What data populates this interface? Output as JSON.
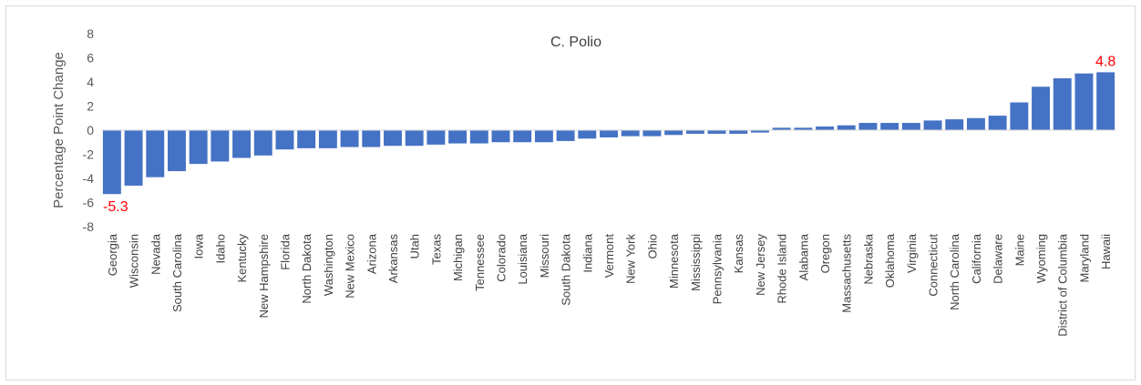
{
  "chart_data": {
    "type": "bar",
    "title": "C. Polio",
    "ylabel": "Percentage Point Change",
    "xlabel": "",
    "ylim": [
      -8,
      8
    ],
    "yticks": [
      -8,
      -6,
      -4,
      -2,
      0,
      2,
      4,
      6,
      8
    ],
    "grid": false,
    "legend": "none",
    "bar_color": "#4472C4",
    "label_color": "#FF0000",
    "categories": [
      "Georgia",
      "Wisconsin",
      "Nevada",
      "South Carolina",
      "Iowa",
      "Idaho",
      "Kentucky",
      "New Hampshire",
      "Florida",
      "North Dakota",
      "Washington",
      "New Mexico",
      "Arizona",
      "Arkansas",
      "Utah",
      "Texas",
      "Michigan",
      "Tennessee",
      "Colorado",
      "Louisiana",
      "Missouri",
      "South Dakota",
      "Indiana",
      "Vermont",
      "New York",
      "Ohio",
      "Minnesota",
      "Mississippi",
      "Pennsylvania",
      "Kansas",
      "New Jersey",
      "Rhode Island",
      "Alabama",
      "Oregon",
      "Massachusetts",
      "Nebraska",
      "Oklahoma",
      "Virginia",
      "Connecticut",
      "North Carolina",
      "California",
      "Delaware",
      "Maine",
      "Wyoming",
      "District of Columbia",
      "Maryland",
      "Hawaii"
    ],
    "values": [
      -5.3,
      -4.6,
      -3.9,
      -3.4,
      -2.8,
      -2.6,
      -2.3,
      -2.1,
      -1.6,
      -1.5,
      -1.5,
      -1.4,
      -1.4,
      -1.3,
      -1.3,
      -1.2,
      -1.1,
      -1.1,
      -1.0,
      -1.0,
      -1.0,
      -0.9,
      -0.7,
      -0.6,
      -0.5,
      -0.5,
      -0.4,
      -0.3,
      -0.3,
      -0.3,
      -0.2,
      0.2,
      0.2,
      0.3,
      0.4,
      0.6,
      0.6,
      0.6,
      0.8,
      0.9,
      1.0,
      1.2,
      2.3,
      3.6,
      4.3,
      4.7,
      4.8
    ],
    "data_labels": [
      {
        "category": "Georgia",
        "text": "-5.3"
      },
      {
        "category": "Hawaii",
        "text": "4.8"
      }
    ]
  }
}
